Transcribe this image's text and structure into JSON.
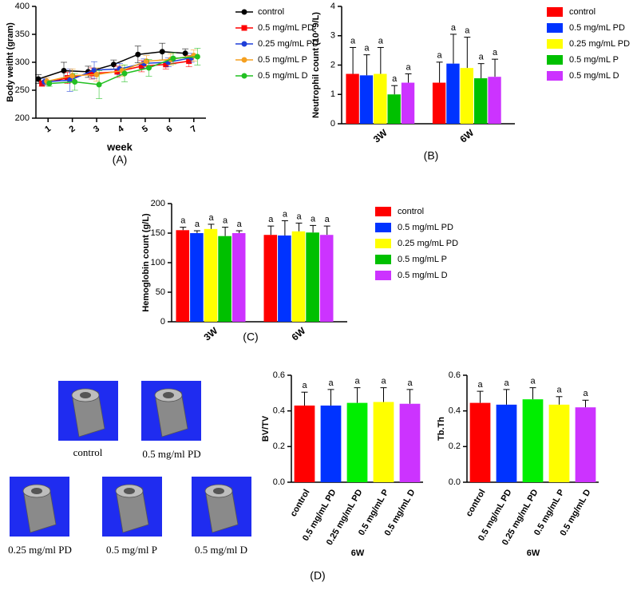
{
  "chart_data": [
    {
      "type": "line",
      "panel_label": "(A)",
      "xlabel": "week",
      "ylabel": "Body weitht (gram)",
      "xlim": [
        0.5,
        7.5
      ],
      "xticks": [
        1,
        2,
        3,
        4,
        5,
        6,
        7
      ],
      "ylim": [
        200,
        400
      ],
      "yticks": [
        200,
        250,
        300,
        350,
        400
      ],
      "series": [
        {
          "name": "control",
          "color": "#000000",
          "marker": "circle",
          "x": [
            0.6,
            1.65,
            2.65,
            3.7,
            4.7,
            5.7,
            6.65
          ],
          "values": [
            270,
            285,
            283,
            296,
            314,
            319,
            316
          ],
          "errors": [
            8,
            15,
            10,
            8,
            15,
            15,
            8
          ]
        },
        {
          "name": "0.5 mg/mL PD",
          "color": "#ff0000",
          "marker": "square",
          "x": [
            0.75,
            1.8,
            2.8,
            3.85,
            4.85,
            5.85,
            6.8
          ],
          "values": [
            262,
            272,
            280,
            283,
            293,
            296,
            302
          ],
          "errors": [
            5,
            10,
            10,
            10,
            10,
            8,
            10
          ]
        },
        {
          "name": "0.25 mg/mL PD",
          "color": "#1f3fd8",
          "marker": "circle",
          "x": [
            0.85,
            1.9,
            2.9,
            3.95,
            4.95,
            5.95,
            6.9
          ],
          "values": [
            265,
            268,
            286,
            288,
            298,
            300,
            308
          ],
          "errors": [
            6,
            20,
            15,
            10,
            8,
            8,
            8
          ]
        },
        {
          "name": "0.5 mg/mL P",
          "color": "#f5a020",
          "marker": "circle",
          "x": [
            0.95,
            2.0,
            3.0,
            4.05,
            5.05,
            6.05,
            7.0
          ],
          "values": [
            266,
            276,
            278,
            285,
            302,
            305,
            312
          ],
          "errors": [
            6,
            12,
            12,
            10,
            10,
            10,
            10
          ]
        },
        {
          "name": "0.5 mg/mL D",
          "color": "#22c022",
          "marker": "circle",
          "x": [
            1.05,
            2.1,
            3.1,
            4.15,
            5.15,
            6.15,
            7.15
          ],
          "values": [
            262,
            265,
            260,
            280,
            290,
            307,
            310
          ],
          "errors": [
            5,
            15,
            25,
            15,
            15,
            10,
            15
          ]
        }
      ]
    },
    {
      "type": "bar",
      "panel_label": "(B)",
      "ylabel": "Neutrophil count (10^9/L)",
      "categories": [
        "3W",
        "6W"
      ],
      "ylim": [
        0,
        4
      ],
      "yticks": [
        0,
        1,
        2,
        3,
        4
      ],
      "series": [
        {
          "name": "control",
          "color": "#ff0000",
          "values": [
            1.7,
            1.4
          ],
          "errors": [
            0.9,
            0.7
          ],
          "letters": [
            "a",
            "a"
          ]
        },
        {
          "name": "0.5 mg/mL PD",
          "color": "#0033ff",
          "values": [
            1.65,
            2.05
          ],
          "errors": [
            0.7,
            1.0
          ],
          "letters": [
            "a",
            "a"
          ]
        },
        {
          "name": "0.25 mg/mL PD",
          "color": "#ffff00",
          "values": [
            1.7,
            1.9
          ],
          "errors": [
            0.9,
            1.05
          ],
          "letters": [
            "a",
            "a"
          ]
        },
        {
          "name": "0.5 mg/mL P",
          "color": "#00c000",
          "values": [
            1.0,
            1.55
          ],
          "errors": [
            0.3,
            0.5
          ],
          "letters": [
            "a",
            "a"
          ]
        },
        {
          "name": "0.5 mg/mL D",
          "color": "#cc33ff",
          "values": [
            1.4,
            1.6
          ],
          "errors": [
            0.3,
            0.6
          ],
          "letters": [
            "a",
            "a"
          ]
        }
      ]
    },
    {
      "type": "bar",
      "panel_label": "(C)",
      "ylabel": "Hemoglobin count (g/L)",
      "categories": [
        "3W",
        "6W"
      ],
      "ylim": [
        0,
        200
      ],
      "yticks": [
        0,
        50,
        100,
        150,
        200
      ],
      "series": [
        {
          "name": "control",
          "color": "#ff0000",
          "values": [
            155,
            147
          ],
          "errors": [
            5,
            15
          ],
          "letters": [
            "a",
            "a"
          ]
        },
        {
          "name": "0.5 mg/mL PD",
          "color": "#0033ff",
          "values": [
            150,
            146
          ],
          "errors": [
            4,
            25
          ],
          "letters": [
            "a",
            "a"
          ]
        },
        {
          "name": "0.25 mg/mL PD",
          "color": "#ffff00",
          "values": [
            157,
            153
          ],
          "errors": [
            8,
            14
          ],
          "letters": [
            "a",
            "a"
          ]
        },
        {
          "name": "0.5 mg/mL P",
          "color": "#00c000",
          "values": [
            145,
            151
          ],
          "errors": [
            15,
            12
          ],
          "letters": [
            "a",
            "a"
          ]
        },
        {
          "name": "0.5 mg/mL D",
          "color": "#cc33ff",
          "values": [
            150,
            147
          ],
          "errors": [
            4,
            15
          ],
          "letters": [
            "a",
            "a"
          ]
        }
      ]
    },
    {
      "type": "colorbar",
      "ylabel": "BV/TV",
      "xlabel": "6W",
      "categories": [
        "control",
        "0.5 mg/mL PD",
        "0.25 mg/mL PD",
        "0.5 mg/mL P",
        "0.5 mg/mL D"
      ],
      "colors": [
        "#ff0000",
        "#0033ff",
        "#00ee00",
        "#ffff00",
        "#cc33ff"
      ],
      "values": [
        0.43,
        0.43,
        0.445,
        0.45,
        0.44
      ],
      "errors": [
        0.075,
        0.09,
        0.085,
        0.08,
        0.08
      ],
      "letters": [
        "a",
        "a",
        "a",
        "a",
        "a"
      ],
      "ylim": [
        0,
        0.6
      ],
      "yticks": [
        {
          "value": 0,
          "label": "0.0"
        },
        0.2,
        0.4,
        0.6
      ]
    },
    {
      "type": "colorbar",
      "ylabel": "Tb.Th",
      "xlabel": "6W",
      "categories": [
        "control",
        "0.5 mg/mL PD",
        "0.25 mg/mL PD",
        "0.5 mg/mL P",
        "0.5 mg/mL D"
      ],
      "colors": [
        "#ff0000",
        "#0033ff",
        "#00ee00",
        "#ffff00",
        "#cc33ff"
      ],
      "values": [
        0.445,
        0.435,
        0.465,
        0.435,
        0.42
      ],
      "errors": [
        0.065,
        0.085,
        0.065,
        0.045,
        0.04
      ],
      "letters": [
        "a",
        "a",
        "a",
        "a",
        "a"
      ],
      "ylim": [
        0,
        0.6
      ],
      "yticks": [
        {
          "value": 0,
          "label": "0.0"
        },
        0.2,
        0.4,
        0.6
      ]
    }
  ],
  "specimens": [
    "control",
    "0.5 mg/ml PD",
    "0.25 mg/ml PD",
    "0.5 mg/ml P",
    "0.5 mg/ml D"
  ],
  "panel_d_label": "(D)"
}
